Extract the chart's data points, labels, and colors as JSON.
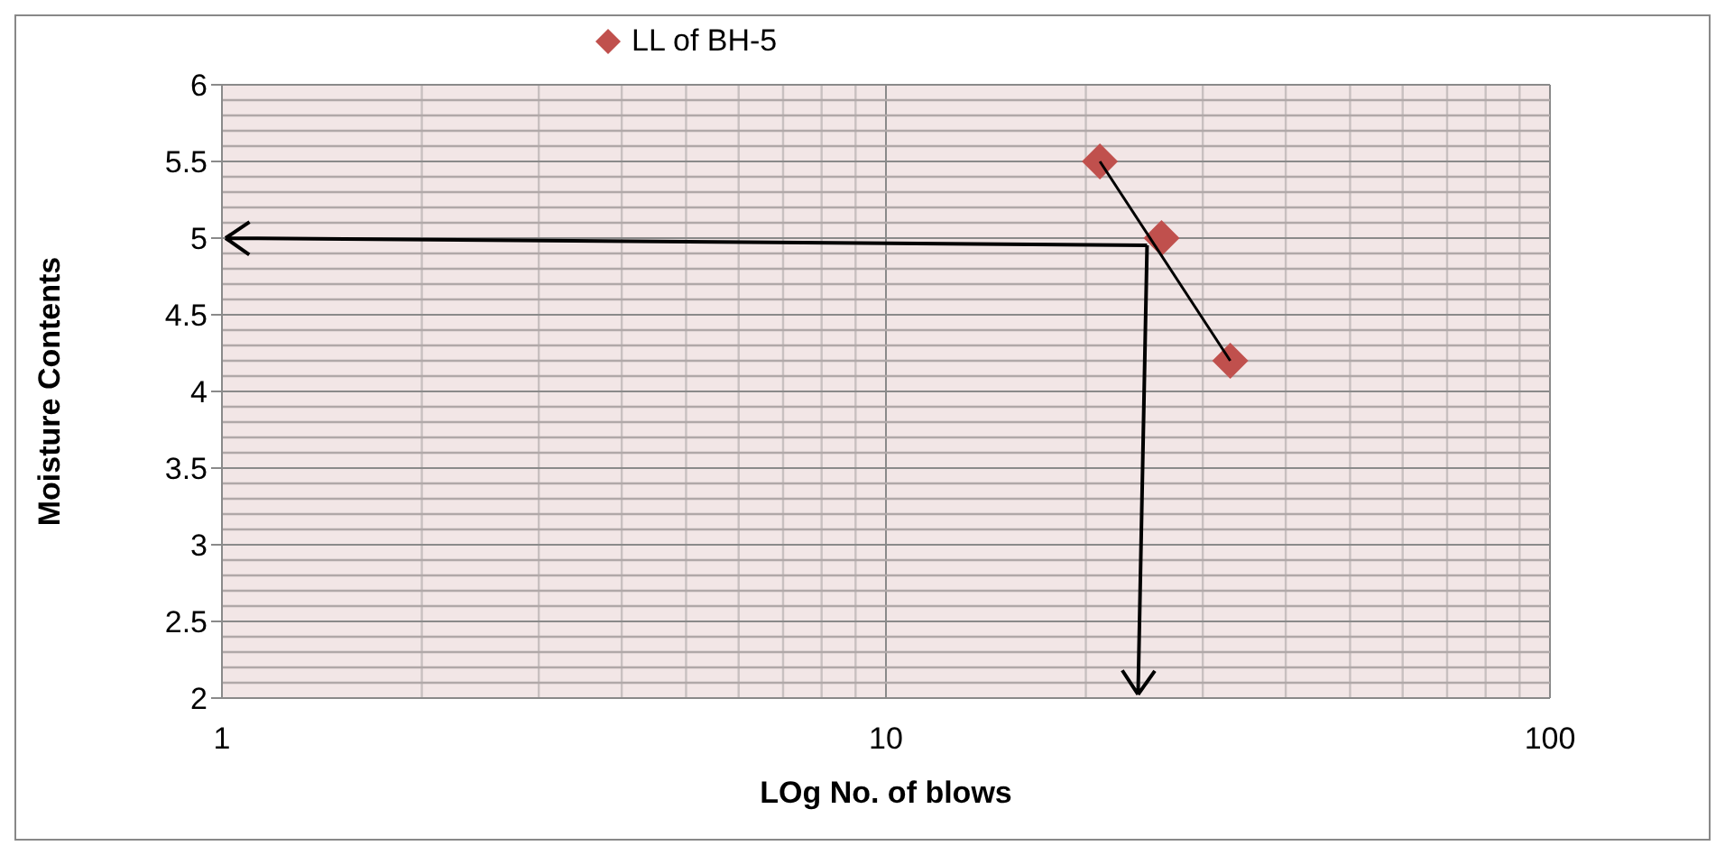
{
  "chart_data": {
    "type": "scatter",
    "xlabel": "LOg No. of blows",
    "ylabel": "Moisture Contents",
    "log": "x",
    "xlim": [
      1,
      100
    ],
    "xticks": [
      1,
      10,
      100
    ],
    "ylim": [
      2,
      6
    ],
    "yticks": [
      2,
      2.5,
      3,
      3.5,
      4,
      4.5,
      5,
      5.5,
      6
    ],
    "grid": true,
    "legend": "top",
    "marker": "diamond",
    "series": [
      {
        "name": "LL of BH-5",
        "color": "#c0504d",
        "x": [
          21,
          26,
          33
        ],
        "values": [
          5.5,
          5.0,
          4.2
        ]
      },
      {
        "type": "line",
        "marker": "none",
        "color": "#000000",
        "x": [
          21,
          33
        ],
        "values": [
          5.5,
          4.2
        ]
      }
    ]
  }
}
